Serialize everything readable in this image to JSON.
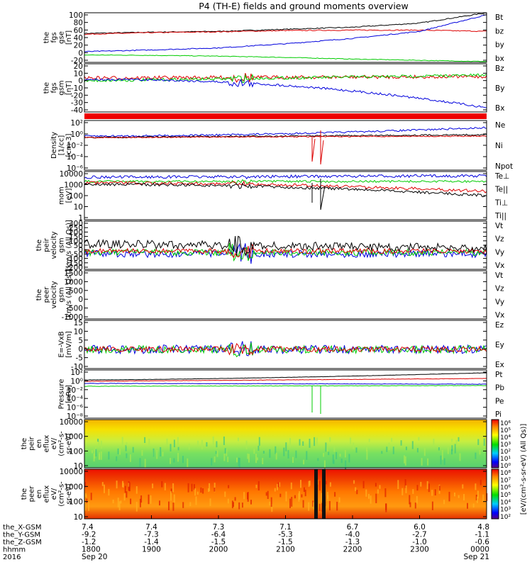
{
  "title": "P4 (TH-E) fields and ground moments overview",
  "colors": {
    "black": "#000000",
    "red": "#dd0000",
    "green": "#00cc00",
    "blue": "#0000dd"
  },
  "panels": [
    {
      "id": "fgs",
      "ylabel": [
        "the",
        "fgs",
        "gse",
        "[nT]"
      ],
      "ticks": [
        "100",
        "80",
        "60",
        "40",
        "20",
        "0",
        "-20"
      ],
      "legend": [
        {
          "text": "Bt",
          "color": "black"
        },
        {
          "text": "bz",
          "color": "red"
        },
        {
          "text": "by",
          "color": "green"
        },
        {
          "text": "bx",
          "color": "blue"
        }
      ]
    },
    {
      "id": "fgs_gsm",
      "ylabel": [
        "the",
        "fgs",
        "gsm",
        "[nT]"
      ],
      "ticks": [
        "20",
        "10",
        "0",
        "-10",
        "-20",
        "-30",
        "-40"
      ],
      "legend": [
        {
          "text": "Bz",
          "color": "red"
        },
        {
          "text": "By",
          "color": "green"
        },
        {
          "text": "Bx",
          "color": "blue"
        }
      ]
    },
    {
      "id": "density",
      "ylabel": [
        "Density",
        "[1/cc]",
        "[cm-3]"
      ],
      "ticks": [
        "10²",
        "10⁰",
        "10⁻²",
        "10⁻⁴",
        "10⁻⁶"
      ],
      "legend": [
        {
          "text": "Ne",
          "color": "red"
        },
        {
          "text": "Ni",
          "color": "black"
        },
        {
          "text": "Npot",
          "color": "blue"
        }
      ]
    },
    {
      "id": "temp",
      "ylabel": [
        "mom",
        "[eV]"
      ],
      "ticks": [
        "10000",
        "1000",
        "100",
        "10",
        "1"
      ],
      "legend": [
        {
          "text": "Te⊥",
          "color": "red"
        },
        {
          "text": "Te||",
          "color": "black"
        },
        {
          "text": "Ti⊥",
          "color": "red"
        },
        {
          "text": "Ti||",
          "color": "green"
        }
      ]
    },
    {
      "id": "peir_vel",
      "ylabel": [
        "the",
        "peir",
        "velocity",
        "gsm",
        "[km/s (All Qs)]"
      ],
      "ticks": [
        "300",
        "250",
        "200",
        "150",
        "100",
        "50",
        "0",
        "-50",
        "-100",
        "-150",
        "-200"
      ],
      "legend": [
        {
          "text": "Vt",
          "color": "black"
        },
        {
          "text": "Vz",
          "color": "red"
        },
        {
          "text": "Vy",
          "color": "green"
        },
        {
          "text": "Vx",
          "color": "blue"
        }
      ]
    },
    {
      "id": "peer_vel",
      "ylabel": [
        "the",
        "peer",
        "velocity",
        "gsm",
        "[km/s (All Qs)]"
      ],
      "ticks": [
        "1500",
        "1000",
        "500",
        "0",
        "-500",
        "-1000"
      ],
      "legend": [
        {
          "text": "Vt",
          "color": "black"
        },
        {
          "text": "Vz",
          "color": "red"
        },
        {
          "text": "Vy",
          "color": "green"
        },
        {
          "text": "Vx",
          "color": "blue"
        }
      ]
    },
    {
      "id": "efield",
      "ylabel": [
        "E=-VxB",
        "[mV/m]"
      ],
      "ticks": [
        "15",
        "10",
        "5",
        "0",
        "-5",
        "-10"
      ],
      "legend": [
        {
          "text": "Ez",
          "color": "red"
        },
        {
          "text": "Ey",
          "color": "green"
        },
        {
          "text": "Ex",
          "color": "blue"
        }
      ]
    },
    {
      "id": "pressure",
      "ylabel": [
        "Pressure",
        "[nPa]"
      ],
      "ticks": [
        "10²",
        "10⁰",
        "10⁻²",
        "10⁻⁴",
        "10⁻⁶",
        "10⁻⁸"
      ],
      "legend": [
        {
          "text": "Pt",
          "color": "black"
        },
        {
          "text": "Pb",
          "color": "red"
        },
        {
          "text": "Pe",
          "color": "green"
        },
        {
          "text": "Pi",
          "color": "blue"
        }
      ]
    },
    {
      "id": "peir_spec",
      "ylabel": [
        "the",
        "peir",
        "en",
        "eflux",
        "eV/",
        "(cm²-s-",
        "sr-eV)"
      ],
      "ticks": [
        "10000",
        "1000",
        "100",
        "10"
      ],
      "legend": []
    },
    {
      "id": "peer_spec",
      "ylabel": [
        "the",
        "peer",
        "en",
        "eflux",
        "eV/",
        "(cm²-s-",
        "sr-eV)"
      ],
      "ticks": [
        "10000",
        "1000",
        "100",
        "10"
      ],
      "legend": []
    }
  ],
  "colorbar": {
    "label": "[eV/(cm²-s-sr-eV) (All Qs)]",
    "top_ticks": [
      "10⁶",
      "10⁵",
      "10⁴",
      "10³",
      "10²",
      "10¹",
      "10⁰"
    ],
    "bottom_ticks": [
      "10⁸",
      "10⁷",
      "10⁶",
      "10⁵",
      "10⁴",
      "10³",
      "10²"
    ]
  },
  "time_axis": {
    "row_labels": [
      "the_X-GSM",
      "the_Y-GSM",
      "the_Z-GSM",
      "hhmm",
      "2016"
    ],
    "columns": [
      [
        "7.4",
        "-9.2",
        "-1.2",
        "1800",
        "Sep 20"
      ],
      [
        "7.4",
        "-7.3",
        "-1.4",
        "1900",
        ""
      ],
      [
        "7.3",
        "-6.4",
        "-1.5",
        "2000",
        ""
      ],
      [
        "7.1",
        "-5.3",
        "-1.5",
        "2100",
        ""
      ],
      [
        "6.7",
        "-4.0",
        "-1.3",
        "2200",
        ""
      ],
      [
        "6.0",
        "-2.7",
        "-1.0",
        "2300",
        ""
      ],
      [
        "4.8",
        "-1.1",
        "-0.6",
        "0000",
        "Sep 21"
      ]
    ]
  },
  "chart_data": {
    "type": "line",
    "title": "P4 (TH-E) fields and ground moments overview",
    "x": [
      "1800",
      "1900",
      "2000",
      "2100",
      "2200",
      "2300",
      "0000"
    ],
    "series": [
      {
        "name": "Bt",
        "values": [
          50,
          53,
          55,
          60,
          65,
          75,
          100
        ]
      },
      {
        "name": "bz",
        "values": [
          48,
          52,
          54,
          57,
          58,
          58,
          55
        ]
      },
      {
        "name": "by",
        "values": [
          -2,
          -3,
          -5,
          -8,
          -12,
          -15,
          -18
        ]
      },
      {
        "name": "bx",
        "values": [
          6,
          10,
          15,
          25,
          38,
          55,
          95
        ]
      }
    ],
    "ylim": [
      -20,
      100
    ]
  }
}
